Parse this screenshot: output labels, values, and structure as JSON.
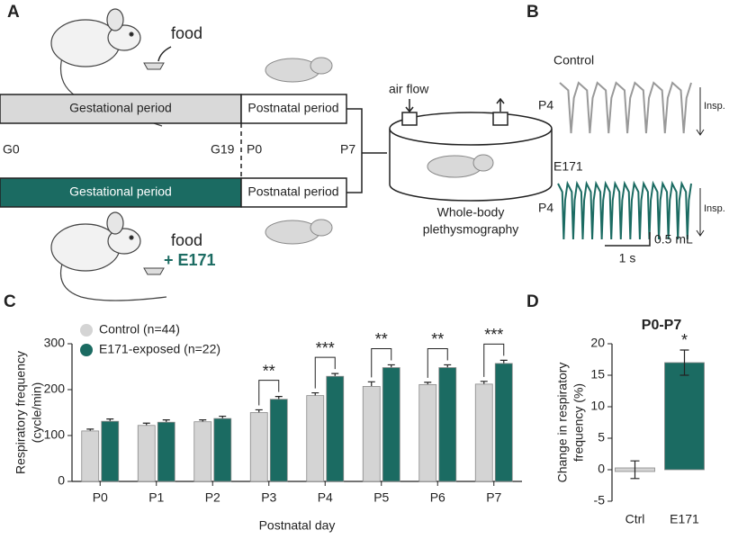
{
  "panel_labels": [
    "A",
    "B",
    "C",
    "D"
  ],
  "schedule": {
    "food_top": "food",
    "bar_control": [
      "Gestational period",
      "Postnatal period"
    ],
    "bar_e171": [
      "Gestational period",
      "Postnatal period"
    ],
    "timepoints": [
      "G0",
      "G19",
      "P0",
      "P7"
    ],
    "food_bottom": "food",
    "food_bottom_additive": "+ E171",
    "airflow": "air flow",
    "chamber_label": [
      "Whole-body",
      "plethysmography"
    ]
  },
  "traces": {
    "control": {
      "title": "Control",
      "day": "P4",
      "insp": "Insp."
    },
    "e171": {
      "title": "E171",
      "day": "P4",
      "insp": "Insp."
    },
    "scale_volume": "0.5 mL",
    "scale_time": "1 s"
  },
  "chart_data": [
    {
      "type": "bar",
      "xlabel": "Postnatal day",
      "ylabel": [
        "Respiratory frequency",
        "(cycle/min)"
      ],
      "categories": [
        "P0",
        "P1",
        "P2",
        "P3",
        "P4",
        "P5",
        "P6",
        "P7"
      ],
      "series": [
        {
          "name": "Control (n=44)",
          "color": "#d4d4d4",
          "values": [
            110,
            122,
            130,
            150,
            187,
            207,
            211,
            212
          ],
          "errors": [
            4,
            5,
            4,
            6,
            6,
            10,
            5,
            6
          ]
        },
        {
          "name": "E171-exposed (n=22)",
          "color": "#1b6b62",
          "values": [
            131,
            129,
            137,
            179,
            229,
            248,
            248,
            257
          ],
          "errors": [
            5,
            5,
            5,
            6,
            6,
            6,
            6,
            7
          ]
        }
      ],
      "annotations": [
        null,
        null,
        null,
        "**",
        "***",
        "**",
        "**",
        "***"
      ],
      "ylim": [
        0,
        300
      ],
      "yticks": [
        0,
        100,
        200,
        300
      ],
      "legend": "upper left"
    },
    {
      "type": "bar",
      "title": "P0-P7",
      "ylabel": [
        "Change in respiratory",
        "frequency (%)"
      ],
      "categories": [
        "Ctrl",
        "E171"
      ],
      "values": [
        0,
        17
      ],
      "errors": [
        1.4,
        2
      ],
      "colors": [
        "#d4d4d4",
        "#1b6b62"
      ],
      "annotations": [
        null,
        "*"
      ],
      "ylim": [
        -5,
        20
      ],
      "yticks": [
        -5,
        0,
        5,
        10,
        15,
        20
      ]
    }
  ]
}
